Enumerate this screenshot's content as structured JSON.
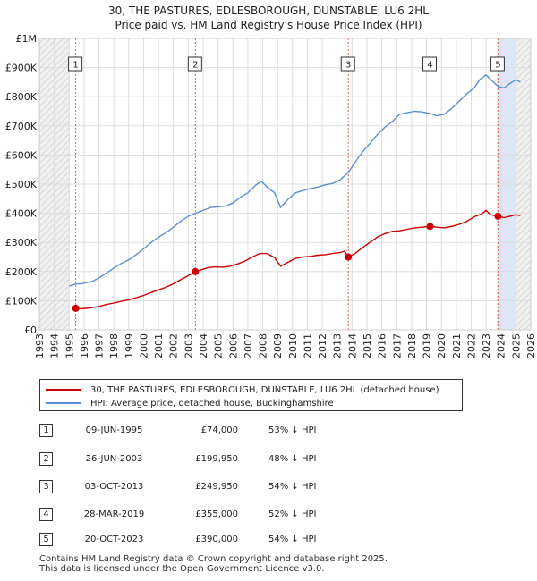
{
  "chart_data": {
    "type": "line",
    "title": "30, THE PASTURES, EDLESBOROUGH, DUNSTABLE, LU6 2HL",
    "subtitle": "Price paid vs. HM Land Registry's House Price Index (HPI)",
    "xlim": [
      1993,
      2026
    ],
    "ylim": [
      0,
      1000000
    ],
    "x_ticks": [
      "1993",
      "1994",
      "1995",
      "1996",
      "1997",
      "1998",
      "1999",
      "2000",
      "2001",
      "2002",
      "2003",
      "2004",
      "2005",
      "2006",
      "2007",
      "2008",
      "2009",
      "2010",
      "2011",
      "2012",
      "2013",
      "2014",
      "2015",
      "2016",
      "2017",
      "2018",
      "2019",
      "2020",
      "2021",
      "2022",
      "2023",
      "2024",
      "2025",
      "2026"
    ],
    "y_ticks": [
      {
        "v": 0,
        "label": "£0"
      },
      {
        "v": 100000,
        "label": "£100K"
      },
      {
        "v": 200000,
        "label": "£200K"
      },
      {
        "v": 300000,
        "label": "£300K"
      },
      {
        "v": 400000,
        "label": "£400K"
      },
      {
        "v": 500000,
        "label": "£500K"
      },
      {
        "v": 600000,
        "label": "£600K"
      },
      {
        "v": 700000,
        "label": "£700K"
      },
      {
        "v": 800000,
        "label": "£800K"
      },
      {
        "v": 900000,
        "label": "£900K"
      },
      {
        "v": 1000000,
        "label": "£1M"
      }
    ],
    "shaded_ranges": [
      [
        1993,
        1995.0
      ],
      [
        2025.0,
        2026
      ]
    ],
    "grid": true,
    "colors": {
      "property": "#cc0000",
      "hpi": "#5b8fd0",
      "marker_line": "#e06060",
      "highlight": "#dde6f5"
    },
    "series": [
      {
        "name": "30, THE PASTURES, EDLESBOROUGH, DUNSTABLE, LU6 2HL (detached house)",
        "color": "#cc0000",
        "x": [
          1995.44,
          1995.8,
          1996.5,
          1997.0,
          1997.5,
          1998.0,
          1998.5,
          1999.0,
          1999.5,
          2000.0,
          2000.5,
          2001.0,
          2001.5,
          2002.0,
          2002.5,
          2003.0,
          2003.48,
          2003.8,
          2004.3,
          2004.8,
          2005.3,
          2005.8,
          2006.3,
          2006.8,
          2007.3,
          2007.8,
          2008.3,
          2008.8,
          2009.2,
          2009.7,
          2010.2,
          2010.7,
          2011.2,
          2011.7,
          2012.2,
          2012.7,
          2013.2,
          2013.5,
          2013.75,
          2014.2,
          2014.7,
          2015.2,
          2015.7,
          2016.2,
          2016.7,
          2017.2,
          2017.7,
          2018.2,
          2018.7,
          2019.24,
          2019.7,
          2020.2,
          2020.7,
          2021.2,
          2021.7,
          2022.2,
          2022.7,
          2023.0,
          2023.3,
          2023.8,
          2024.2,
          2024.6,
          2025.0,
          2025.3
        ],
        "y": [
          74000,
          72000,
          76000,
          80000,
          87000,
          92000,
          98000,
          103000,
          110000,
          118000,
          128000,
          137000,
          146000,
          158000,
          172000,
          186000,
          199950,
          205000,
          213000,
          216000,
          215000,
          218000,
          226000,
          236000,
          250000,
          262000,
          262000,
          248000,
          218000,
          232000,
          245000,
          250000,
          252000,
          256000,
          258000,
          262000,
          265000,
          270000,
          249950,
          262000,
          282000,
          300000,
          318000,
          330000,
          338000,
          340000,
          345000,
          350000,
          352000,
          355000,
          352000,
          350000,
          355000,
          362000,
          372000,
          388000,
          398000,
          410000,
          395000,
          390000,
          385000,
          390000,
          395000,
          392000
        ]
      },
      {
        "name": "HPI: Average price, detached house, Buckinghamshire",
        "color": "#5b8fd0",
        "x": [
          1995.0,
          1995.44,
          1995.8,
          1996.5,
          1997.0,
          1997.5,
          1998.0,
          1998.5,
          1999.0,
          1999.5,
          2000.0,
          2000.5,
          2001.0,
          2001.5,
          2002.0,
          2002.5,
          2003.0,
          2003.48,
          2004.0,
          2004.5,
          2005.0,
          2005.5,
          2006.0,
          2006.5,
          2007.0,
          2007.5,
          2007.9,
          2008.3,
          2008.8,
          2009.2,
          2009.7,
          2010.2,
          2010.7,
          2011.2,
          2011.7,
          2012.2,
          2012.7,
          2013.2,
          2013.75,
          2014.2,
          2014.7,
          2015.2,
          2015.7,
          2016.2,
          2016.7,
          2017.2,
          2017.7,
          2018.2,
          2018.7,
          2019.24,
          2019.7,
          2020.2,
          2020.7,
          2021.2,
          2021.7,
          2022.2,
          2022.6,
          2023.0,
          2023.4,
          2023.8,
          2024.2,
          2024.6,
          2025.0,
          2025.3
        ],
        "y": [
          150000,
          157000,
          158000,
          165000,
          178000,
          195000,
          212000,
          228000,
          240000,
          258000,
          278000,
          300000,
          318000,
          333000,
          352000,
          373000,
          390000,
          400000,
          410000,
          420000,
          422000,
          425000,
          435000,
          455000,
          470000,
          495000,
          510000,
          490000,
          470000,
          420000,
          448000,
          470000,
          478000,
          485000,
          490000,
          498000,
          502000,
          515000,
          540000,
          575000,
          610000,
          640000,
          670000,
          695000,
          715000,
          740000,
          745000,
          750000,
          748000,
          742000,
          735000,
          740000,
          760000,
          785000,
          810000,
          830000,
          860000,
          875000,
          855000,
          835000,
          830000,
          845000,
          858000,
          850000
        ]
      }
    ],
    "sales": [
      {
        "label": "1",
        "x": 1995.44,
        "y": 74000,
        "date": "09-JUN-1995",
        "price": "£74,000",
        "hpi": "53% ↓ HPI"
      },
      {
        "label": "2",
        "x": 2003.48,
        "y": 199950,
        "date": "26-JUN-2003",
        "price": "£199,950",
        "hpi": "48% ↓ HPI"
      },
      {
        "label": "3",
        "x": 2013.75,
        "y": 249950,
        "date": "03-OCT-2013",
        "price": "£249,950",
        "hpi": "54% ↓ HPI"
      },
      {
        "label": "4",
        "x": 2019.24,
        "y": 355000,
        "date": "28-MAR-2019",
        "price": "£355,000",
        "hpi": "52% ↓ HPI"
      },
      {
        "label": "5",
        "x": 2023.8,
        "y": 390000,
        "date": "20-OCT-2023",
        "price": "£390,000",
        "hpi": "54% ↓ HPI"
      }
    ]
  },
  "legend": {
    "property_label": "30, THE PASTURES, EDLESBOROUGH, DUNSTABLE, LU6 2HL (detached house)",
    "hpi_label": "HPI: Average price, detached house, Buckinghamshire"
  },
  "footer": {
    "line1": "Contains HM Land Registry data © Crown copyright and database right 2025.",
    "line2": "This data is licensed under the Open Government Licence v3.0."
  }
}
